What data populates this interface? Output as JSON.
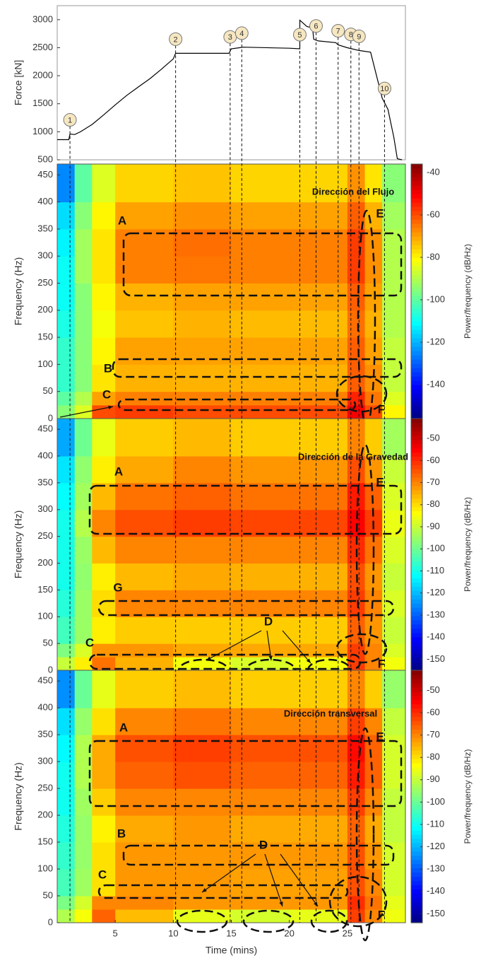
{
  "chart_data": [
    {
      "type": "line",
      "ylabel": "Force [kN]",
      "color": "#000000",
      "x": [
        0,
        1,
        1.1,
        1.5,
        2,
        3,
        4,
        5,
        6,
        7,
        8,
        9,
        10,
        10.2,
        11,
        14.8,
        15,
        15.7,
        16,
        20,
        20.9,
        20.9,
        21.5,
        22,
        22.1,
        22.5,
        24,
        24.2,
        25,
        26,
        27,
        28,
        28.5,
        29,
        29.3,
        29.7
      ],
      "values": [
        860,
        860,
        960,
        950,
        1000,
        1130,
        1300,
        1480,
        1650,
        1800,
        1950,
        2120,
        2300,
        2400,
        2400,
        2400,
        2480,
        2500,
        2510,
        2490,
        2480,
        2990,
        2880,
        2850,
        2650,
        2620,
        2590,
        2550,
        2500,
        2450,
        2420,
        1600,
        1400,
        900,
        520,
        500
      ],
      "xlim": [
        0,
        30
      ],
      "ylim": [
        500,
        3250
      ],
      "yticks": [
        500,
        1000,
        1500,
        2000,
        2500,
        3000
      ],
      "events": [
        {
          "label": "1",
          "x": 1.1
        },
        {
          "label": "2",
          "x": 10.2
        },
        {
          "label": "3",
          "x": 14.9
        },
        {
          "label": "4",
          "x": 15.9
        },
        {
          "label": "5",
          "x": 20.9
        },
        {
          "label": "6",
          "x": 22.3
        },
        {
          "label": "7",
          "x": 24.2
        },
        {
          "label": "8",
          "x": 25.3
        },
        {
          "label": "9",
          "x": 26
        },
        {
          "label": "10",
          "x": 28.2
        }
      ]
    },
    {
      "type": "heatmap",
      "title": "Dirección del Flujo",
      "ylabel": "Frequency (Hz)",
      "colorbar_label": "Power/frequency (dB/Hz)",
      "colormap": "jet",
      "x_bins": [
        0,
        1.5,
        3,
        5,
        10,
        15,
        20,
        25,
        26.5,
        28,
        30
      ],
      "y_bins": [
        0,
        25,
        50,
        100,
        150,
        200,
        250,
        300,
        350,
        400,
        470
      ],
      "values": [
        [
          -95,
          -85,
          -60,
          -58,
          -60,
          -60,
          -60,
          -50,
          -60,
          -80
        ],
        [
          -100,
          -90,
          -70,
          -66,
          -66,
          -66,
          -66,
          -55,
          -65,
          -85
        ],
        [
          -105,
          -95,
          -78,
          -72,
          -72,
          -72,
          -72,
          -62,
          -68,
          -88
        ],
        [
          -105,
          -95,
          -80,
          -70,
          -70,
          -70,
          -70,
          -62,
          -70,
          -88
        ],
        [
          -108,
          -95,
          -82,
          -74,
          -72,
          -73,
          -73,
          -64,
          -72,
          -90
        ],
        [
          -110,
          -95,
          -80,
          -72,
          -70,
          -70,
          -70,
          -62,
          -70,
          -90
        ],
        [
          -110,
          -92,
          -78,
          -66,
          -65,
          -66,
          -66,
          -58,
          -68,
          -90
        ],
        [
          -112,
          -92,
          -78,
          -66,
          -64,
          -66,
          -66,
          -58,
          -68,
          -90
        ],
        [
          -115,
          -95,
          -80,
          -70,
          -68,
          -70,
          -70,
          -62,
          -72,
          -92
        ],
        [
          -125,
          -100,
          -85,
          -76,
          -74,
          -76,
          -76,
          -68,
          -78,
          -95
        ]
      ],
      "xlim": [
        0,
        30
      ],
      "ylim": [
        0,
        470
      ],
      "yticks": [
        0,
        50,
        100,
        150,
        200,
        250,
        300,
        350,
        400,
        450
      ],
      "clim": [
        -156,
        -36
      ],
      "cticks": [
        -40,
        -60,
        -80,
        -100,
        -120,
        -140
      ],
      "annotations": [
        "A",
        "B",
        "C",
        "E",
        "F"
      ]
    },
    {
      "type": "heatmap",
      "title": "Dirección de la Gravedad",
      "ylabel": "Frequency (Hz)",
      "colorbar_label": "Power/frequency (dB/Hz)",
      "colormap": "jet",
      "x_bins": [
        0,
        1.5,
        3,
        5,
        10,
        15,
        20,
        25,
        26.5,
        28,
        30
      ],
      "y_bins": [
        0,
        25,
        50,
        100,
        150,
        200,
        250,
        300,
        350,
        400,
        470
      ],
      "values": [
        [
          -90,
          -82,
          -68,
          -75,
          -85,
          -88,
          -85,
          -62,
          -70,
          -85
        ],
        [
          -98,
          -88,
          -72,
          -72,
          -74,
          -74,
          -74,
          -62,
          -70,
          -88
        ],
        [
          -105,
          -95,
          -82,
          -78,
          -78,
          -78,
          -78,
          -66,
          -72,
          -90
        ],
        [
          -108,
          -95,
          -80,
          -70,
          -70,
          -70,
          -70,
          -62,
          -70,
          -88
        ],
        [
          -110,
          -96,
          -82,
          -76,
          -74,
          -75,
          -75,
          -64,
          -72,
          -90
        ],
        [
          -110,
          -95,
          -76,
          -70,
          -70,
          -70,
          -70,
          -60,
          -68,
          -88
        ],
        [
          -110,
          -92,
          -70,
          -64,
          -62,
          -63,
          -63,
          -55,
          -62,
          -86
        ],
        [
          -112,
          -94,
          -76,
          -68,
          -66,
          -68,
          -68,
          -58,
          -66,
          -88
        ],
        [
          -115,
          -96,
          -82,
          -74,
          -70,
          -72,
          -72,
          -64,
          -72,
          -90
        ],
        [
          -122,
          -100,
          -86,
          -78,
          -76,
          -78,
          -78,
          -70,
          -78,
          -94
        ]
      ],
      "xlim": [
        0,
        30
      ],
      "ylim": [
        0,
        470
      ],
      "yticks": [
        0,
        50,
        100,
        150,
        200,
        250,
        300,
        350,
        400,
        450
      ],
      "clim": [
        -155,
        -41
      ],
      "cticks": [
        -50,
        -60,
        -70,
        -80,
        -90,
        -100,
        -110,
        -120,
        -130,
        -140,
        -150
      ],
      "annotations": [
        "A",
        "G",
        "C",
        "D",
        "E",
        "F"
      ]
    },
    {
      "type": "heatmap",
      "title": "Dirección transversal",
      "ylabel": "Frequency (Hz)",
      "xlabel": "Time (mins)",
      "colorbar_label": "Power/frequency (dB/Hz)",
      "colormap": "jet",
      "x_bins": [
        0,
        1.5,
        3,
        5,
        10,
        15,
        20,
        25,
        26.5,
        28,
        30
      ],
      "y_bins": [
        0,
        25,
        50,
        100,
        150,
        200,
        250,
        300,
        350,
        400,
        470
      ],
      "values": [
        [
          -92,
          -84,
          -66,
          -76,
          -86,
          -88,
          -86,
          -62,
          -70,
          -85
        ],
        [
          -98,
          -88,
          -70,
          -70,
          -72,
          -72,
          -72,
          -60,
          -68,
          -86
        ],
        [
          -104,
          -94,
          -80,
          -72,
          -72,
          -73,
          -73,
          -64,
          -70,
          -88
        ],
        [
          -106,
          -95,
          -80,
          -72,
          -72,
          -72,
          -72,
          -64,
          -72,
          -88
        ],
        [
          -108,
          -95,
          -82,
          -74,
          -72,
          -74,
          -74,
          -66,
          -74,
          -90
        ],
        [
          -110,
          -94,
          -78,
          -70,
          -70,
          -70,
          -70,
          -62,
          -70,
          -90
        ],
        [
          -110,
          -92,
          -74,
          -66,
          -64,
          -66,
          -66,
          -58,
          -66,
          -88
        ],
        [
          -112,
          -92,
          -74,
          -64,
          -62,
          -64,
          -64,
          -56,
          -66,
          -88
        ],
        [
          -115,
          -95,
          -80,
          -70,
          -68,
          -70,
          -70,
          -62,
          -70,
          -90
        ],
        [
          -124,
          -100,
          -86,
          -78,
          -76,
          -78,
          -78,
          -70,
          -78,
          -95
        ]
      ],
      "xlim": [
        0,
        30
      ],
      "ylim": [
        0,
        470
      ],
      "yticks": [
        0,
        50,
        100,
        150,
        200,
        250,
        300,
        350,
        400,
        450
      ],
      "xticks": [
        5,
        10,
        15,
        20,
        25
      ],
      "clim": [
        -154,
        -41
      ],
      "cticks": [
        -50,
        -60,
        -70,
        -80,
        -90,
        -100,
        -110,
        -120,
        -130,
        -140,
        -150
      ],
      "annotations": [
        "A",
        "B",
        "C",
        "D",
        "E",
        "F"
      ]
    }
  ]
}
